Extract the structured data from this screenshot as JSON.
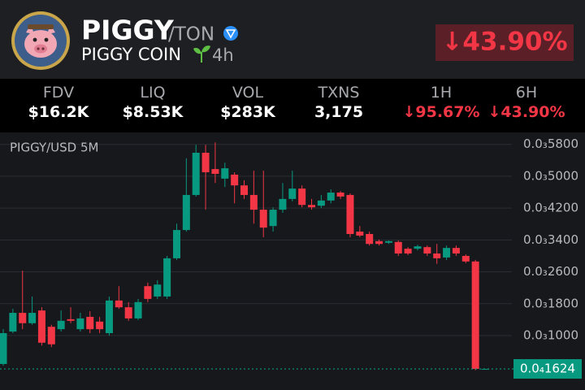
{
  "header": {
    "symbol": "PIGGY",
    "pair": "/TON",
    "name": "PIGGY COIN",
    "age": "4h",
    "change": "↓43.90%"
  },
  "stats": [
    {
      "label": "FDV",
      "value": "$16.2K"
    },
    {
      "label": "LIQ",
      "value": "$8.53K"
    },
    {
      "label": "VOL",
      "value": "$283K"
    },
    {
      "label": "TXNS",
      "value": "3,175"
    },
    {
      "label": "1H",
      "value": "↓95.67%"
    },
    {
      "label": "6H",
      "value": "↓43.90%"
    }
  ],
  "chart_data": {
    "type": "candlestick",
    "label": "PIGGY/USD 5M",
    "up_color": "#089981",
    "down_color": "#f23645",
    "grid": true,
    "ylim": [
      0,
      0.00061
    ],
    "yticks": [
      {
        "value": 0.00058,
        "label": "0.0₃5800"
      },
      {
        "value": 0.0005,
        "label": "0.0₃5000"
      },
      {
        "value": 0.00042,
        "label": "0.0₃4200"
      },
      {
        "value": 0.00034,
        "label": "0.0₃3400"
      },
      {
        "value": 0.00026,
        "label": "0.0₃2600"
      },
      {
        "value": 0.00018,
        "label": "0.0₃1800"
      },
      {
        "value": 0.0001,
        "label": "0.0₃1000"
      }
    ],
    "last_price": {
      "value": 1.624e-05,
      "label": "0.0₄1624"
    },
    "open": [
      2.86e-05,
      0.00011,
      0.000157,
      0.000131,
      0.000163,
      0.000122,
      0.000116,
      0.000141,
      0.000116,
      0.000147,
      0.000135,
      0.000106,
      0.000188,
      0.000171,
      0.000143,
      0.000224,
      0.000198,
      0.000198,
      0.000294,
      0.000365,
      0.000453,
      0.000559,
      0.000518,
      0.000494,
      0.000504,
      0.000477,
      0.000453,
      0.000416,
      0.000375,
      0.000416,
      0.000443,
      0.000469,
      0.000428,
      0.000426,
      0.000439,
      0.000459,
      0.000453,
      0.000361,
      0.000355,
      0.000337,
      0.000333,
      0.000335,
      0.000318,
      0.000318,
      0.000322,
      0.000306,
      0.000296,
      0.00032,
      0.0003,
      0.000286,
      1.624e-05
    ],
    "high": [
      0.0001163,
      0.000167,
      0.000263,
      0.000198,
      0.000171,
      0.000127,
      0.000163,
      0.000171,
      0.000157,
      0.000161,
      0.000147,
      0.000198,
      0.000224,
      0.000184,
      0.000192,
      0.000233,
      0.000239,
      0.0003,
      0.000381,
      0.000545,
      0.000579,
      0.000579,
      0.000585,
      0.000534,
      0.00051,
      0.00049,
      0.000514,
      0.000514,
      0.000422,
      0.000483,
      0.000514,
      0.000477,
      0.000443,
      0.000453,
      0.000467,
      0.000463,
      0.000457,
      0.000375,
      0.000361,
      0.000341,
      0.000339,
      0.000339,
      0.000322,
      0.000328,
      0.000326,
      0.00033,
      0.000326,
      0.000326,
      0.000304,
      0.00029,
      1.624e-05
    ],
    "low": [
      2.45e-05,
      0.000106,
      0.000116,
      0.000127,
      7.5e-05,
      7.1e-05,
      0.00011,
      0.000131,
      0.00011,
      0.000106,
      0.000106,
      0.0001,
      0.000167,
      0.000137,
      0.000139,
      0.000184,
      0.000192,
      0.000192,
      0.00029,
      0.000361,
      0.000449,
      0.000416,
      0.000483,
      0.000473,
      0.000432,
      0.000443,
      0.000381,
      0.000347,
      0.000361,
      0.000408,
      0.000437,
      0.000422,
      0.000416,
      0.00042,
      0.000432,
      0.000443,
      0.000347,
      0.000347,
      0.000326,
      0.000326,
      0.00033,
      0.0003,
      0.000302,
      0.000314,
      0.0003,
      0.00028,
      0.00029,
      0.0003,
      0.000282,
      1.3e-05,
      1.624e-05
    ],
    "close": [
      0.0001061,
      0.000157,
      0.000131,
      0.000157,
      8.2e-05,
      7.8e-05,
      0.000137,
      0.000137,
      0.000143,
      0.000116,
      0.000116,
      0.000188,
      0.000171,
      0.000143,
      0.000184,
      0.000192,
      0.000228,
      0.000294,
      0.000365,
      0.000453,
      0.000559,
      0.00051,
      0.000506,
      0.00052,
      0.000477,
      0.000453,
      0.000416,
      0.000371,
      0.000416,
      0.000443,
      0.000469,
      0.000428,
      0.000422,
      0.000439,
      0.000459,
      0.000449,
      0.000355,
      0.000351,
      0.00033,
      0.00033,
      0.000337,
      0.000306,
      0.000306,
      0.000324,
      0.000306,
      0.000294,
      0.00032,
      0.000306,
      0.000286,
      1.624e-05,
      1.624e-05
    ]
  }
}
